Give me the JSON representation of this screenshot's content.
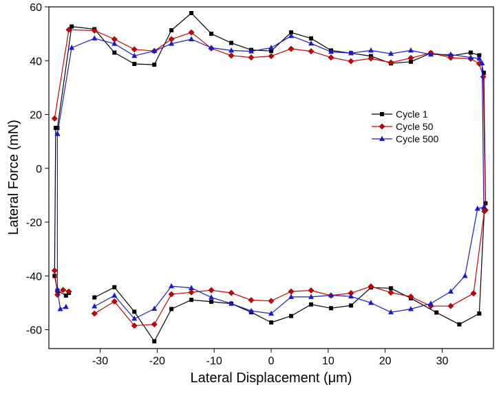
{
  "chart_data": {
    "type": "line",
    "title": "",
    "xlabel": "Lateral Displacement (μm)",
    "ylabel": "Lateral Force (mN)",
    "xlim": [
      -39,
      39
    ],
    "ylim": [
      -67,
      60
    ],
    "xticks": [
      -30,
      -20,
      -10,
      0,
      10,
      20,
      30
    ],
    "yticks": [
      -60,
      -40,
      -20,
      0,
      20,
      40,
      60
    ],
    "grid": false,
    "legend_position": "right",
    "series": [
      {
        "name": "Cycle 1",
        "color": "#000000",
        "marker": "square",
        "points": [
          [
            -37.5,
            15
          ],
          [
            -35,
            52.7
          ],
          [
            -31,
            51.7
          ],
          [
            -27.5,
            43
          ],
          [
            -24,
            38.8
          ],
          [
            -20.5,
            38.5
          ],
          [
            -17.5,
            51.3
          ],
          [
            -14,
            57.7
          ],
          [
            -10.5,
            50
          ],
          [
            -7,
            46.6
          ],
          [
            -3.5,
            44
          ],
          [
            0,
            43.6
          ],
          [
            3.5,
            50.5
          ],
          [
            7,
            48.3
          ],
          [
            10.5,
            43.8
          ],
          [
            14,
            42.8
          ],
          [
            17.5,
            41.7
          ],
          [
            21,
            39
          ],
          [
            24.5,
            39.6
          ],
          [
            28,
            42.8
          ],
          [
            31.5,
            41.8
          ],
          [
            35,
            43
          ],
          [
            36.5,
            42
          ],
          [
            37.3,
            35.5
          ],
          [
            37.6,
            -13
          ],
          [
            37.4,
            -15.5
          ],
          [
            36.5,
            -54
          ],
          [
            33,
            -58
          ],
          [
            29,
            -53.6
          ],
          [
            24.5,
            -48.3
          ],
          [
            21,
            -44.6
          ],
          [
            17.5,
            -44.3
          ],
          [
            14,
            -51
          ],
          [
            10.5,
            -52
          ],
          [
            7,
            -50.6
          ],
          [
            3.5,
            -54.9
          ],
          [
            0,
            -57.3
          ],
          [
            -3.5,
            -53.5
          ],
          [
            -7,
            -50.3
          ],
          [
            -10.5,
            -49.6
          ],
          [
            -14,
            -48.9
          ],
          [
            -17.5,
            -52.3
          ],
          [
            -20.5,
            -64.3
          ],
          [
            -24,
            -53.3
          ],
          [
            -27.5,
            -44.2
          ],
          [
            -31,
            -48
          ],
          null,
          [
            -35.5,
            -46.3
          ],
          [
            -36,
            -47.3
          ],
          [
            -37.5,
            -45.5
          ],
          [
            -38,
            -40
          ],
          [
            -37.8,
            15
          ]
        ]
      },
      {
        "name": "Cycle 50",
        "color": "#cc0000",
        "marker": "diamond",
        "points": [
          [
            -38,
            18.5
          ],
          [
            -35.5,
            51.5
          ],
          [
            -31,
            51.2
          ],
          [
            -27.5,
            48
          ],
          [
            -24,
            44.2
          ],
          [
            -20.5,
            43.6
          ],
          [
            -17.5,
            48
          ],
          [
            -14,
            50.5
          ],
          [
            -10.5,
            44.6
          ],
          [
            -7,
            41.9
          ],
          [
            -3.5,
            41.2
          ],
          [
            0,
            41.7
          ],
          [
            3.5,
            44.4
          ],
          [
            7,
            43.5
          ],
          [
            10.5,
            41.2
          ],
          [
            14,
            39.8
          ],
          [
            17.5,
            40.8
          ],
          [
            21,
            39.3
          ],
          [
            24.5,
            41
          ],
          [
            28,
            42.9
          ],
          [
            31.5,
            41.1
          ],
          [
            35,
            40.7
          ],
          [
            36.5,
            38.9
          ],
          [
            37.2,
            34
          ],
          [
            37.6,
            -15.5
          ],
          [
            37.4,
            -16
          ],
          [
            35.5,
            -46.5
          ],
          [
            31.5,
            -51.2
          ],
          [
            28,
            -51.2
          ],
          [
            24.5,
            -47.7
          ],
          [
            21,
            -46.2
          ],
          [
            17.5,
            -43.9
          ],
          [
            14,
            -46.4
          ],
          [
            10.5,
            -47.3
          ],
          [
            7,
            -45.4
          ],
          [
            3.5,
            -45.8
          ],
          [
            0,
            -49.3
          ],
          [
            -3.5,
            -49
          ],
          [
            -7,
            -46.3
          ],
          [
            -10.5,
            -45.3
          ],
          [
            -14,
            -46.1
          ],
          [
            -17.5,
            -46.8
          ],
          [
            -20.5,
            -58
          ],
          [
            -24,
            -58.5
          ],
          [
            -27.5,
            -49.5
          ],
          [
            -31,
            -54
          ],
          null,
          [
            -35.5,
            -45.8
          ],
          [
            -36.5,
            -45.2
          ],
          [
            -37.5,
            -47
          ],
          [
            -38,
            -38
          ]
        ]
      },
      {
        "name": "Cycle 500",
        "color": "#1a1acc",
        "marker": "triangle",
        "points": [
          [
            -37.5,
            12.8
          ],
          [
            -35,
            44.8
          ],
          [
            -31,
            48.3
          ],
          [
            -27.5,
            46.3
          ],
          [
            -24,
            41.8
          ],
          [
            -20.5,
            43.6
          ],
          [
            -17.5,
            46.3
          ],
          [
            -14,
            48
          ],
          [
            -10.5,
            44.8
          ],
          [
            -7,
            43.8
          ],
          [
            -3.5,
            43.5
          ],
          [
            0,
            44.8
          ],
          [
            3.5,
            49.2
          ],
          [
            7,
            46.4
          ],
          [
            10.5,
            43.3
          ],
          [
            14,
            42.8
          ],
          [
            17.5,
            43.8
          ],
          [
            21,
            42.6
          ],
          [
            24.5,
            43.8
          ],
          [
            28,
            42.3
          ],
          [
            31.5,
            42.3
          ],
          [
            35,
            41.2
          ],
          [
            36.5,
            40.8
          ],
          [
            37,
            39
          ],
          [
            37.3,
            -14.5
          ],
          [
            36.2,
            -15
          ],
          [
            34,
            -40
          ],
          [
            31.5,
            -45.8
          ],
          [
            28,
            -50.3
          ],
          [
            24.5,
            -52.3
          ],
          [
            21,
            -53.5
          ],
          [
            17.5,
            -50
          ],
          [
            14,
            -47.6
          ],
          [
            10.5,
            -47.2
          ],
          [
            7,
            -47.8
          ],
          [
            3.5,
            -47.8
          ],
          [
            0,
            -54
          ],
          [
            -3.5,
            -53
          ],
          [
            -7,
            -50.3
          ],
          [
            -10.5,
            -48
          ],
          [
            -14,
            -44.5
          ],
          [
            -17.5,
            -43.8
          ],
          [
            -20.5,
            -52.2
          ],
          [
            -24,
            -55.9
          ],
          [
            -27.5,
            -47.3
          ],
          [
            -31,
            -51.3
          ],
          null,
          [
            -36,
            -51.5
          ],
          [
            -37,
            -52.3
          ],
          [
            -37.5,
            -45
          ],
          [
            -37.5,
            12.8
          ]
        ]
      }
    ]
  }
}
